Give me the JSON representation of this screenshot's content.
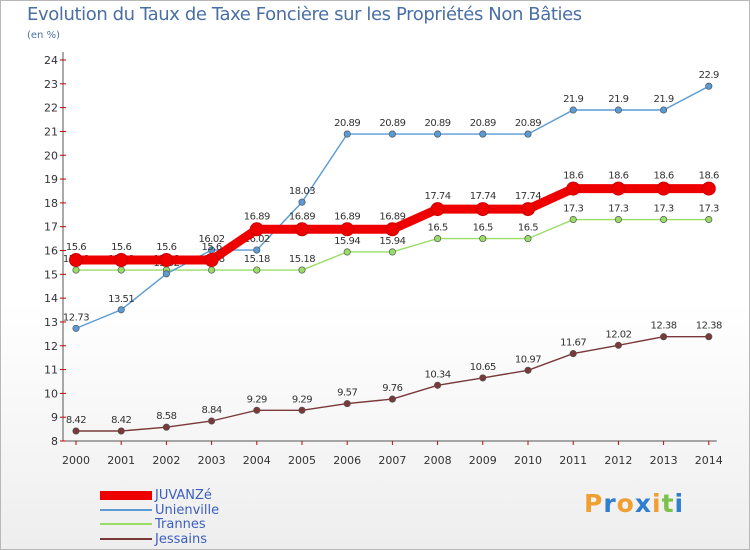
{
  "title": "Evolution du Taux de Taxe Foncière sur les Propriétés Non Bâties",
  "subtitle": "(en %)",
  "logo": {
    "letters": [
      "P",
      "r",
      "o",
      "x",
      "i",
      "t",
      "i"
    ],
    "colors": [
      "#f0a030",
      "#2f7fd0",
      "#f0a030",
      "#2f7fd0",
      "#f0a030",
      "#7cc24a",
      "#2f7fd0"
    ]
  },
  "chart_data": {
    "type": "line",
    "title": "Evolution du Taux de Taxe Foncière sur les Propriétés Non Bâties",
    "ylabel": "(en %)",
    "xlabel": "",
    "ylim": [
      8,
      24
    ],
    "yticks": [
      8,
      9,
      10,
      11,
      12,
      13,
      14,
      15,
      16,
      17,
      18,
      19,
      20,
      21,
      22,
      23,
      24
    ],
    "x": [
      "2000",
      "2001",
      "2002",
      "2003",
      "2004",
      "2005",
      "2006",
      "2007",
      "2008",
      "2009",
      "2010",
      "2011",
      "2012",
      "2013",
      "2014"
    ],
    "grid": false,
    "legend": "bottom-left",
    "series": [
      {
        "name": "JUVANZé",
        "color": "#ee0000",
        "values": [
          15.6,
          15.6,
          15.6,
          15.6,
          16.89,
          16.89,
          16.89,
          16.89,
          17.74,
          17.74,
          17.74,
          18.6,
          18.6,
          18.6,
          18.6
        ],
        "labels": [
          "15.6",
          "15.6",
          "15.6",
          "15.6",
          "16.89",
          "16.89",
          "16.89",
          "16.89",
          "17.74",
          "17.74",
          "17.74",
          "18.6",
          "18.6",
          "18.6",
          "18.6"
        ]
      },
      {
        "name": "Unienville",
        "color": "#5a9bd5",
        "values": [
          12.73,
          13.51,
          15.02,
          16.02,
          16.02,
          18.03,
          20.89,
          20.89,
          20.89,
          20.89,
          20.89,
          21.9,
          21.9,
          21.9,
          22.9
        ],
        "labels": [
          "12.73",
          "13.51",
          "15.02",
          "16.02",
          "16.02",
          "18.03",
          "20.89",
          "20.89",
          "20.89",
          "20.89",
          "20.89",
          "21.9",
          "21.9",
          "21.9",
          "22.9"
        ]
      },
      {
        "name": "Trannes",
        "color": "#99dd66",
        "values": [
          15.18,
          15.18,
          15.18,
          15.18,
          15.18,
          15.18,
          15.94,
          15.94,
          16.5,
          16.5,
          16.5,
          17.3,
          17.3,
          17.3,
          17.3
        ],
        "labels": [
          "15.18",
          "15.18",
          "15.18",
          "15.18",
          "15.18",
          "15.18",
          "15.94",
          "15.94",
          "16.5",
          "16.5",
          "16.5",
          "17.3",
          "17.3",
          "17.3",
          "17.3"
        ]
      },
      {
        "name": "Jessains",
        "color": "#7a3838",
        "values": [
          8.42,
          8.42,
          8.58,
          8.84,
          9.29,
          9.29,
          9.57,
          9.76,
          10.34,
          10.65,
          10.97,
          11.67,
          12.02,
          12.38,
          12.38
        ],
        "labels": [
          "8.42",
          "8.42",
          "8.58",
          "8.84",
          "9.29",
          "9.29",
          "9.57",
          "9.76",
          "10.34",
          "10.65",
          "10.97",
          "11.67",
          "12.02",
          "12.38",
          "12.38"
        ]
      }
    ]
  }
}
